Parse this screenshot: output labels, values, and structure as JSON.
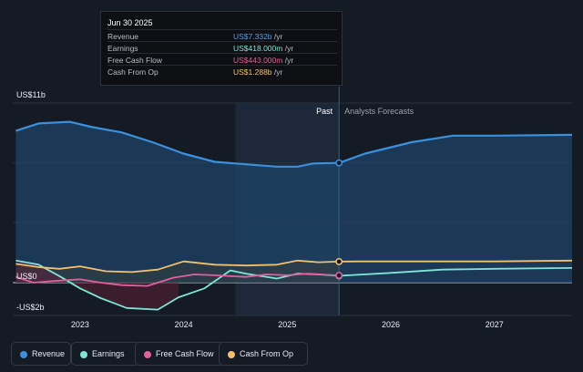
{
  "tooltip": {
    "date": "Jun 30 2025",
    "rows": [
      {
        "label": "Revenue",
        "value": "US$7.332b",
        "unit": " /yr",
        "color": "#4a9fe8"
      },
      {
        "label": "Earnings",
        "value": "US$418.000m",
        "unit": " /yr",
        "color": "#7fe3d6"
      },
      {
        "label": "Free Cash Flow",
        "value": "US$443.000m",
        "unit": " /yr",
        "color": "#e0609a"
      },
      {
        "label": "Cash From Op",
        "value": "US$1.288b",
        "unit": " /yr",
        "color": "#f0c070"
      }
    ]
  },
  "legend": [
    {
      "label": "Revenue",
      "color": "#3b8fdc"
    },
    {
      "label": "Earnings",
      "color": "#7fe3d6"
    },
    {
      "label": "Free Cash Flow",
      "color": "#e0609a"
    },
    {
      "label": "Cash From Op",
      "color": "#f0c070"
    }
  ],
  "chart_data": {
    "type": "line",
    "y_tick_labels": {
      "top": "US$11b",
      "zero": "US$0",
      "bottom": "-US$2b"
    },
    "ylim": [
      -2,
      11
    ],
    "xlim": [
      2022.35,
      2027.75
    ],
    "x_ticks": [
      2023,
      2024,
      2025,
      2026,
      2027
    ],
    "past_label": "Past",
    "forecast_label": "Analysts Forecasts",
    "past_end": 2025.5,
    "shaded_start": 2024.5,
    "series": [
      {
        "name": "Revenue",
        "color": "#3b8fdc",
        "points": [
          [
            2022.38,
            9.3
          ],
          [
            2022.6,
            9.75
          ],
          [
            2022.9,
            9.85
          ],
          [
            2023.1,
            9.55
          ],
          [
            2023.4,
            9.2
          ],
          [
            2023.7,
            8.6
          ],
          [
            2024.0,
            7.9
          ],
          [
            2024.3,
            7.4
          ],
          [
            2024.6,
            7.25
          ],
          [
            2024.9,
            7.1
          ],
          [
            2025.1,
            7.1
          ],
          [
            2025.25,
            7.3
          ],
          [
            2025.5,
            7.332
          ],
          [
            2025.75,
            7.9
          ],
          [
            2026.2,
            8.6
          ],
          [
            2026.6,
            9.0
          ],
          [
            2027.0,
            9.0
          ],
          [
            2027.75,
            9.05
          ]
        ]
      },
      {
        "name": "Earnings",
        "color": "#7fe3d6",
        "points": [
          [
            2022.38,
            1.35
          ],
          [
            2022.6,
            1.1
          ],
          [
            2022.8,
            0.4
          ],
          [
            2023.0,
            -0.35
          ],
          [
            2023.2,
            -0.95
          ],
          [
            2023.45,
            -1.55
          ],
          [
            2023.75,
            -1.65
          ],
          [
            2023.95,
            -0.9
          ],
          [
            2024.2,
            -0.35
          ],
          [
            2024.45,
            0.75
          ],
          [
            2024.6,
            0.55
          ],
          [
            2024.9,
            0.25
          ],
          [
            2025.1,
            0.55
          ],
          [
            2025.3,
            0.5
          ],
          [
            2025.5,
            0.418
          ],
          [
            2026.0,
            0.6
          ],
          [
            2026.5,
            0.8
          ],
          [
            2027.0,
            0.85
          ],
          [
            2027.75,
            0.9
          ]
        ]
      },
      {
        "name": "Free Cash Flow",
        "color": "#e0609a",
        "points": [
          [
            2022.38,
            0.35
          ],
          [
            2022.55,
            0.0
          ],
          [
            2022.75,
            0.1
          ],
          [
            2023.0,
            0.2
          ],
          [
            2023.2,
            0.0
          ],
          [
            2023.4,
            -0.15
          ],
          [
            2023.65,
            -0.2
          ],
          [
            2023.9,
            0.3
          ],
          [
            2024.1,
            0.5
          ],
          [
            2024.3,
            0.45
          ],
          [
            2024.6,
            0.35
          ],
          [
            2024.8,
            0.5
          ],
          [
            2025.0,
            0.45
          ],
          [
            2025.2,
            0.55
          ],
          [
            2025.5,
            0.443
          ]
        ]
      },
      {
        "name": "Cash From Op",
        "color": "#f0c070",
        "points": [
          [
            2022.38,
            1.15
          ],
          [
            2022.6,
            0.95
          ],
          [
            2022.8,
            0.85
          ],
          [
            2023.0,
            1.0
          ],
          [
            2023.25,
            0.7
          ],
          [
            2023.5,
            0.65
          ],
          [
            2023.75,
            0.8
          ],
          [
            2024.0,
            1.3
          ],
          [
            2024.3,
            1.1
          ],
          [
            2024.6,
            1.05
          ],
          [
            2024.9,
            1.1
          ],
          [
            2025.1,
            1.35
          ],
          [
            2025.3,
            1.25
          ],
          [
            2025.5,
            1.288
          ],
          [
            2025.7,
            1.3
          ],
          [
            2026.2,
            1.3
          ],
          [
            2027.0,
            1.3
          ],
          [
            2027.75,
            1.35
          ]
        ]
      }
    ]
  }
}
